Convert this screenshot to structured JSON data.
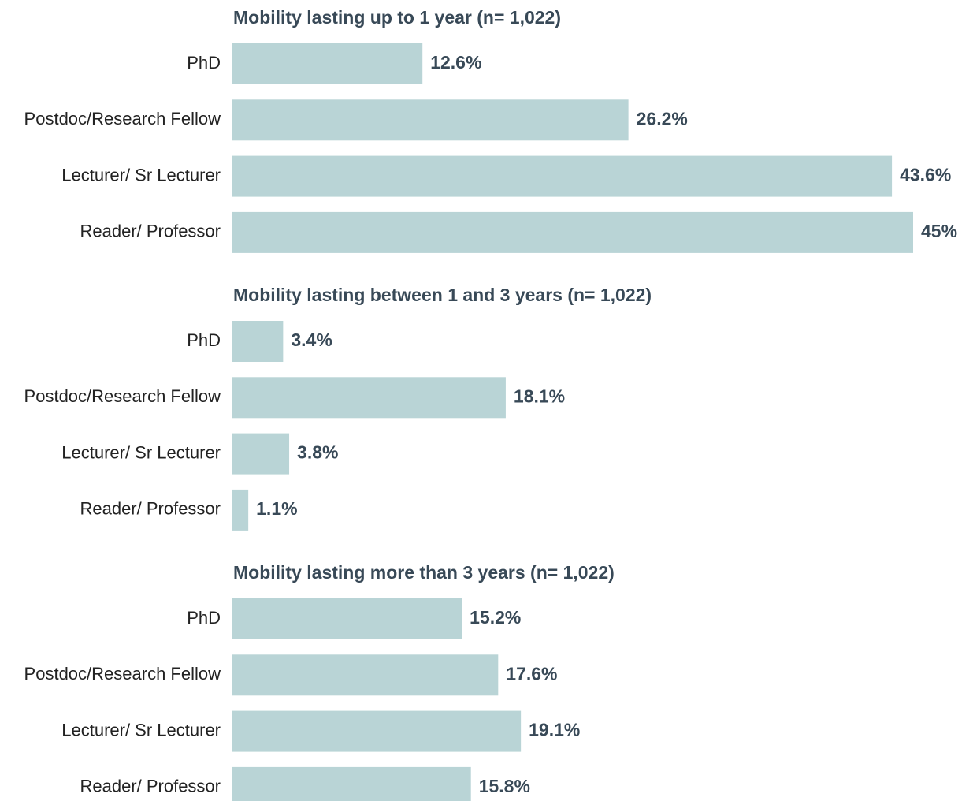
{
  "chart_data": [
    {
      "type": "bar",
      "orientation": "horizontal",
      "title": "Mobility lasting up to 1 year (n= 1,022)",
      "categories": [
        "PhD",
        "Postdoc/Research Fellow",
        "Lecturer/ Sr Lecturer",
        "Reader/ Professor"
      ],
      "values": [
        12.6,
        26.2,
        43.6,
        45
      ],
      "value_labels": [
        "12.6%",
        "26.2%",
        "43.6%",
        "45%"
      ],
      "color": "#b9d4d6",
      "xlim": [
        0,
        45
      ]
    },
    {
      "type": "bar",
      "orientation": "horizontal",
      "title": "Mobility lasting between 1 and 3 years (n= 1,022)",
      "categories": [
        "PhD",
        "Postdoc/Research Fellow",
        "Lecturer/ Sr Lecturer",
        "Reader/ Professor"
      ],
      "values": [
        3.4,
        18.1,
        3.8,
        1.1
      ],
      "value_labels": [
        "3.4%",
        "18.1%",
        "3.8%",
        "1.1%"
      ],
      "color": "#b9d4d6",
      "xlim": [
        0,
        45
      ]
    },
    {
      "type": "bar",
      "orientation": "horizontal",
      "title": "Mobility lasting more than 3 years (n= 1,022)",
      "categories": [
        "PhD",
        "Postdoc/Research Fellow",
        "Lecturer/ Sr Lecturer",
        "Reader/ Professor"
      ],
      "values": [
        15.2,
        17.6,
        19.1,
        15.8
      ],
      "value_labels": [
        "15.2%",
        "17.6%",
        "19.1%",
        "15.8%"
      ],
      "color": "#b9d4d6",
      "xlim": [
        0,
        45
      ]
    }
  ]
}
